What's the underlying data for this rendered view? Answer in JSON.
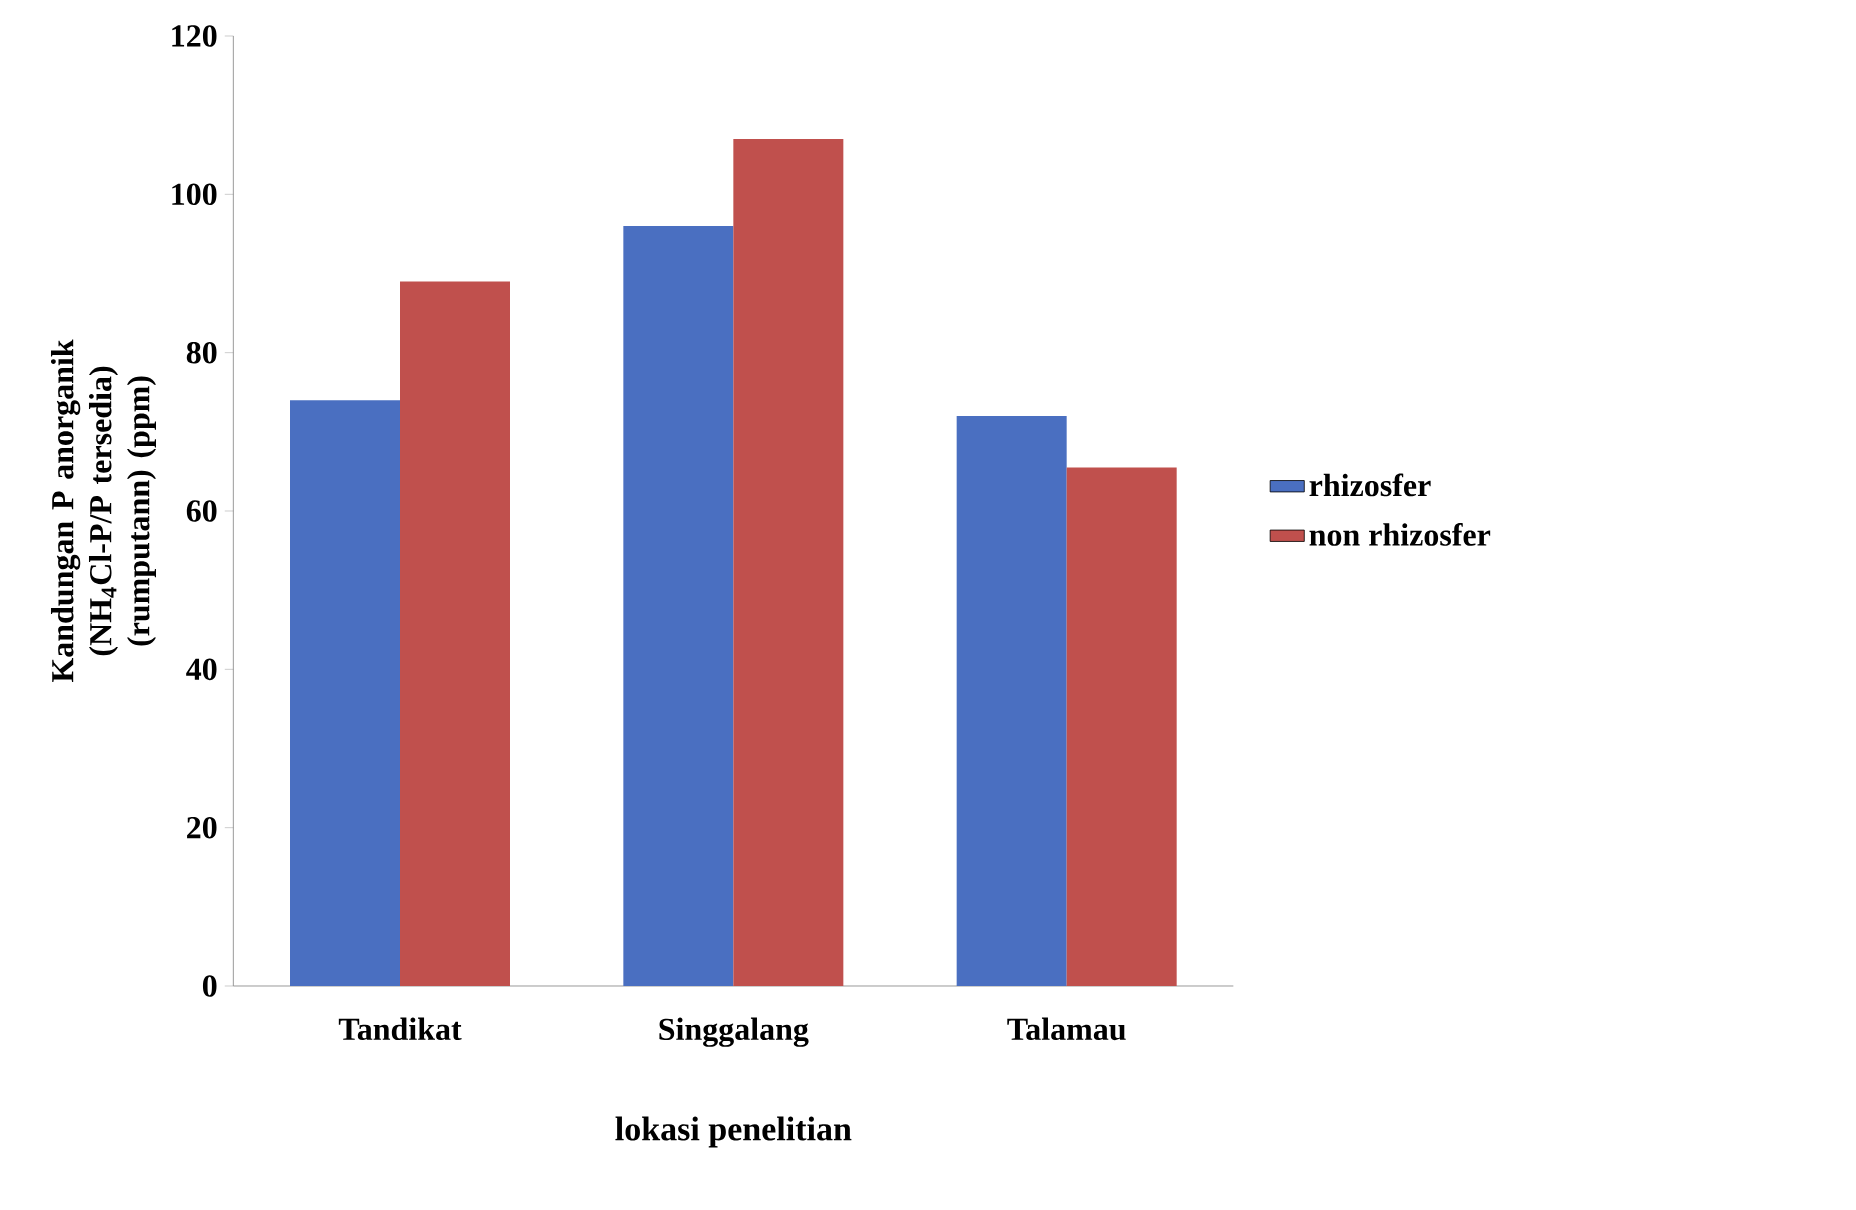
{
  "chart_data": {
    "type": "bar",
    "xlabel": "lokasi penelitian",
    "ylabel": "Kandungan P anorganik (NH$_{4}$Cl-P/P tersedia) (rumputann) (ppm)",
    "categories": [
      "Tandikat",
      "Singgalang",
      "Talamau"
    ],
    "series": [
      {
        "name": "rhizosfer",
        "color": "#4a6fc1",
        "values": [
          74,
          96,
          72
        ]
      },
      {
        "name": "non rhizosfer",
        "color": "#c0504d",
        "values": [
          89,
          107,
          65.5
        ]
      }
    ],
    "ylim": [
      0,
      120
    ],
    "yticks": [
      0,
      20,
      40,
      60,
      80,
      100,
      120
    ],
    "grid": false,
    "legend": "right"
  }
}
